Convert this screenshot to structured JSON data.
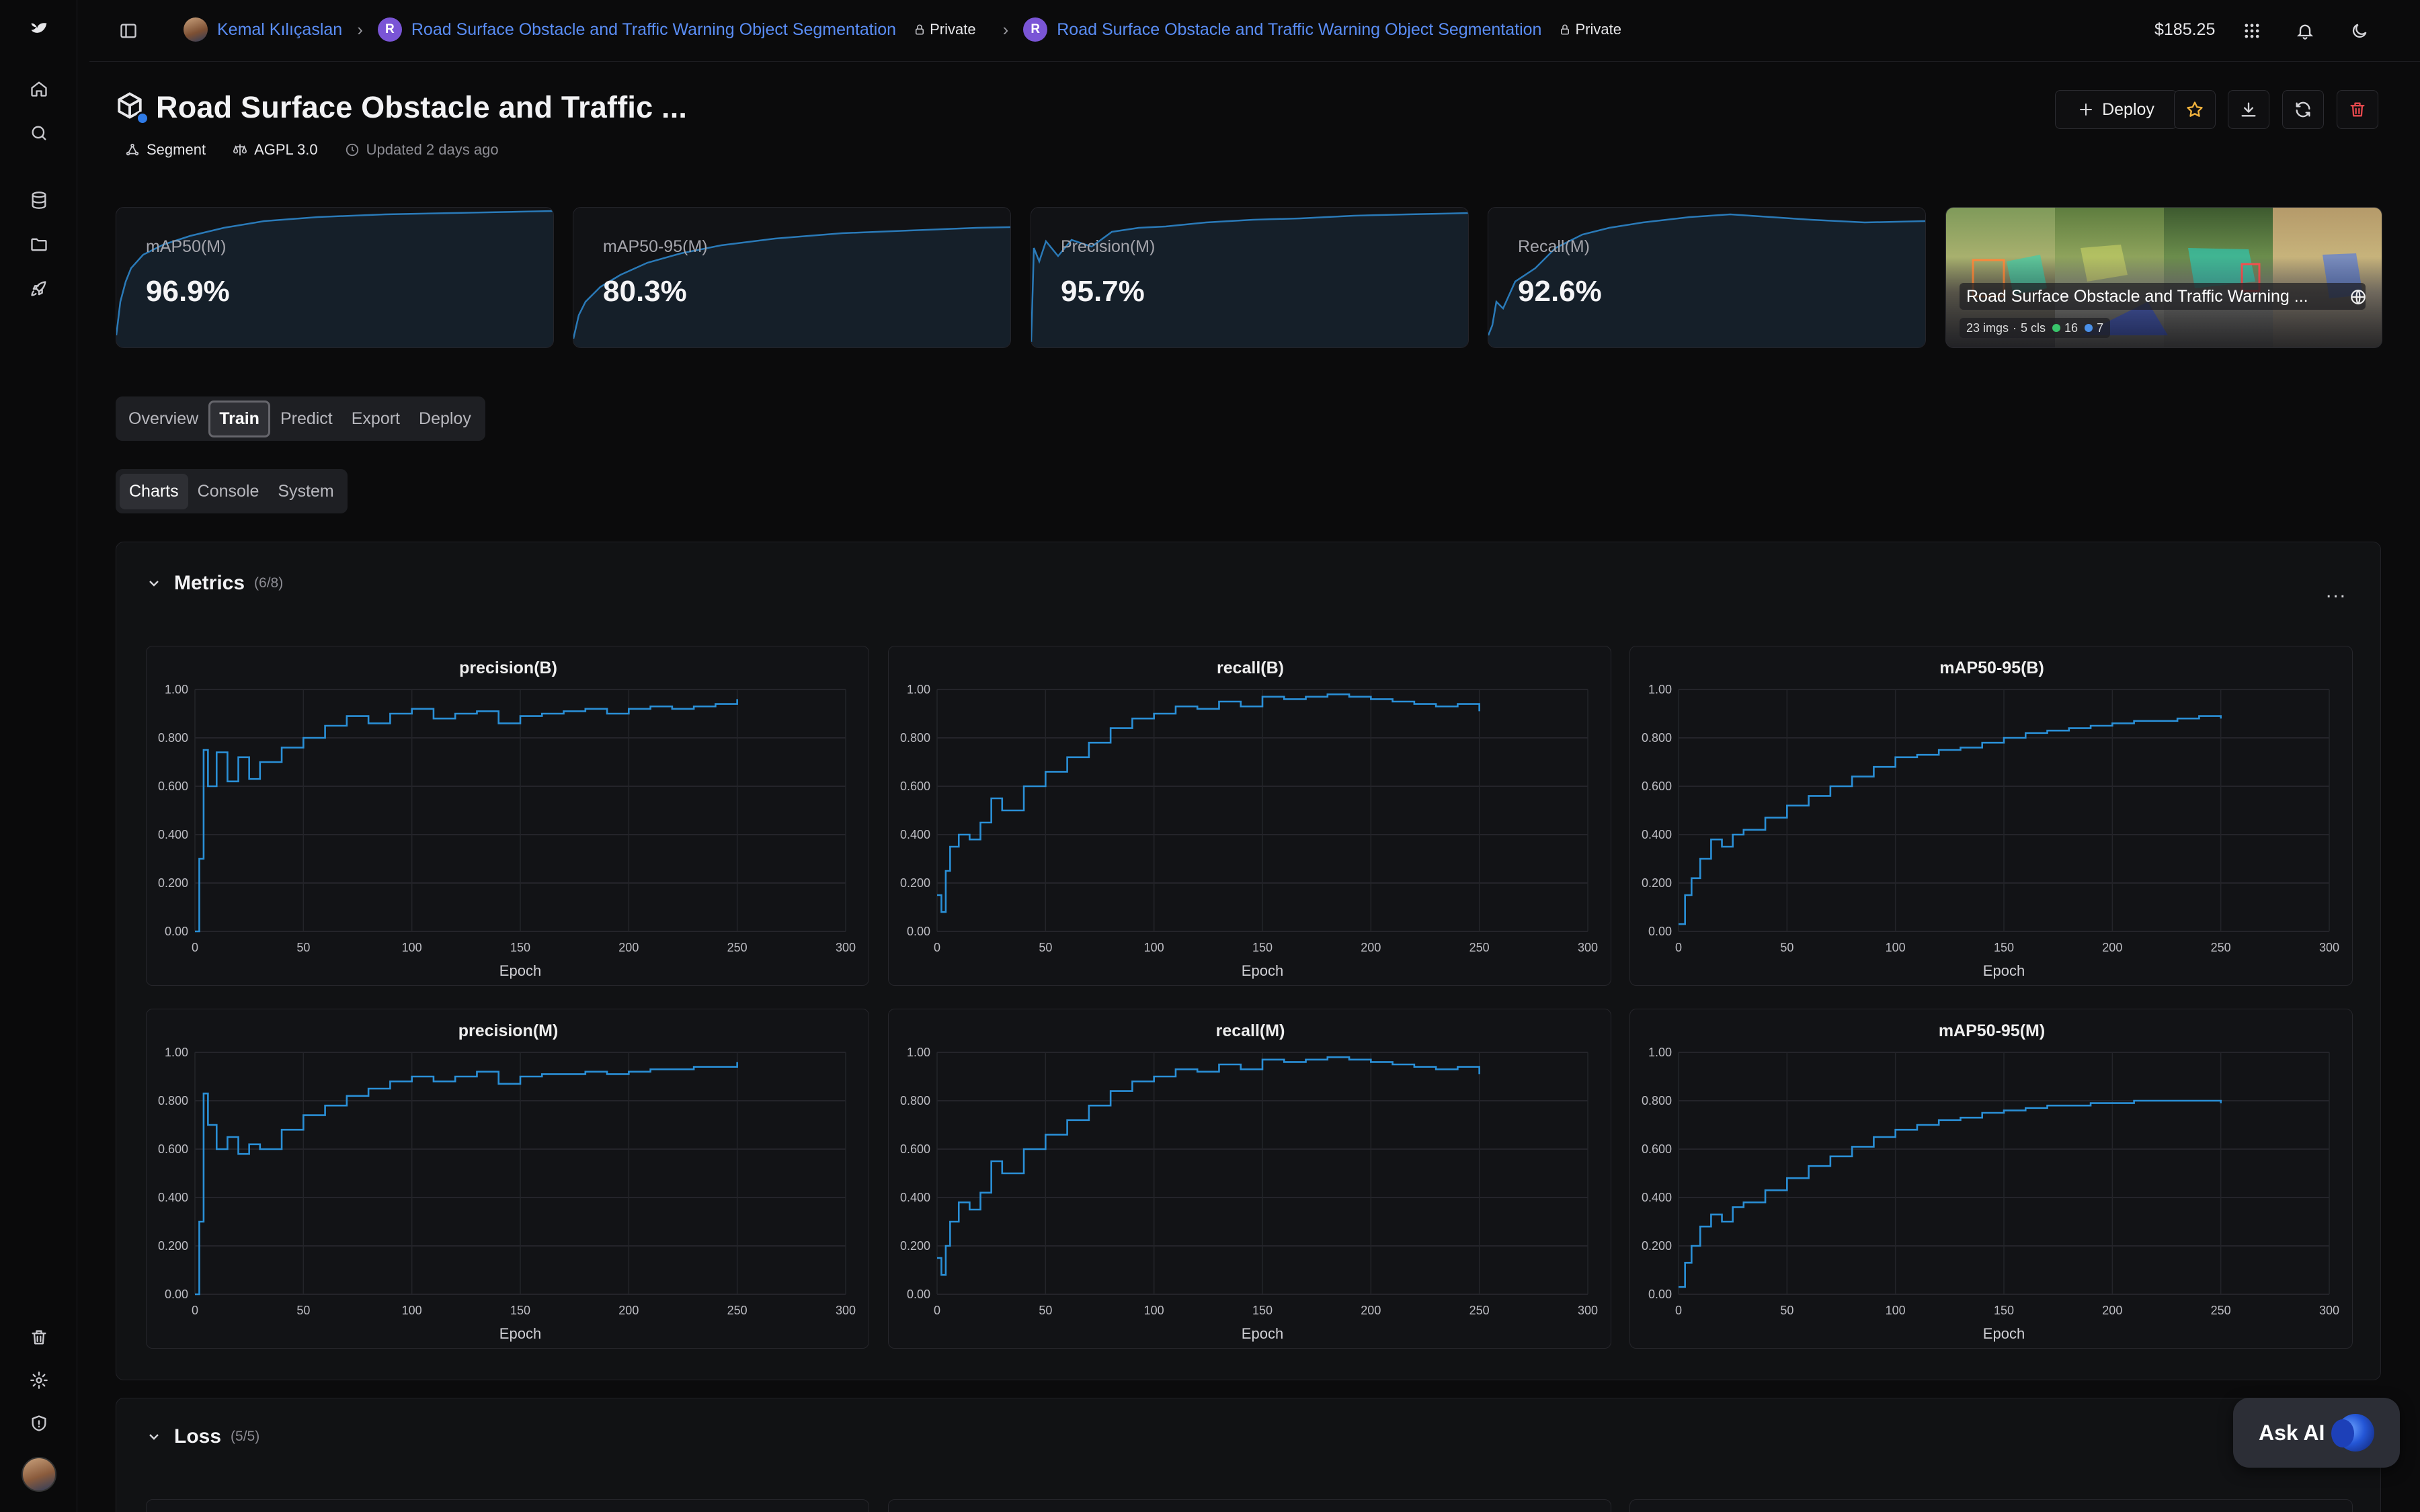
{
  "topbar": {
    "user": "Kemal Kılıçaslan",
    "project": "Road Surface Obstacle and Traffic Warning Object Segmentation",
    "project_initial": "R",
    "project_visibility": "Private",
    "model": "Road Surface Obstacle and Traffic Warning Object Segmentation",
    "model_initial": "R",
    "model_visibility": "Private",
    "balance": "$185.25",
    "icons": [
      "sidebar-toggle-icon",
      "apps-grid-icon",
      "bell-icon",
      "moon-icon"
    ]
  },
  "rail": {
    "icons": [
      "logo-icon",
      "home-icon",
      "search-icon",
      "database-icon",
      "folder-icon",
      "rocket-icon",
      "trash-icon",
      "settings-icon",
      "shield-icon"
    ]
  },
  "header": {
    "title": "Road Surface Obstacle and Traffic ...",
    "task": "Segment",
    "license": "AGPL 3.0",
    "updated": "Updated 2 days ago",
    "deploy_label": "Deploy",
    "star_color": "#f2b33d",
    "delete_color": "#e5484d"
  },
  "metrics_cards": [
    {
      "label": "mAP50(M)",
      "value": "96.9%"
    },
    {
      "label": "mAP50-95(M)",
      "value": "80.3%"
    },
    {
      "label": "Precision(M)",
      "value": "95.7%"
    },
    {
      "label": "Recall(M)",
      "value": "92.6%"
    }
  ],
  "dataset": {
    "name": "Road Surface Obstacle and Traffic Warning ...",
    "images": "23 imgs",
    "classes": "5 cls",
    "count_green": "16",
    "count_blue": "7"
  },
  "tabs": [
    "Overview",
    "Train",
    "Predict",
    "Export",
    "Deploy"
  ],
  "active_tab": "Train",
  "subtabs": [
    "Charts",
    "Console",
    "System"
  ],
  "active_subtab": "Charts",
  "sections": {
    "metrics": {
      "title": "Metrics",
      "count": "(6/8)",
      "more": "..."
    },
    "loss": {
      "title": "Loss",
      "count": "(5/5)"
    }
  },
  "ask_ai": "Ask AI",
  "chart_data": [
    {
      "type": "line",
      "title": "precision(B)",
      "xlabel": "Epoch",
      "xlim": [
        0,
        300
      ],
      "ylim": [
        0,
        1
      ],
      "x_ticks": [
        "0",
        "50",
        "100",
        "150",
        "200",
        "250",
        "300"
      ],
      "y_ticks": [
        "0.00",
        "0.200",
        "0.400",
        "0.600",
        "0.800",
        "1.00"
      ],
      "series": [
        {
          "color": "#2a8fd6",
          "x": [
            0,
            2,
            4,
            6,
            10,
            15,
            20,
            25,
            30,
            40,
            50,
            60,
            70,
            80,
            90,
            100,
            110,
            120,
            130,
            140,
            150,
            160,
            170,
            180,
            190,
            200,
            210,
            220,
            230,
            240,
            250
          ],
          "y": [
            0.0,
            0.3,
            0.75,
            0.6,
            0.74,
            0.62,
            0.72,
            0.63,
            0.7,
            0.76,
            0.8,
            0.85,
            0.89,
            0.86,
            0.9,
            0.92,
            0.88,
            0.9,
            0.91,
            0.86,
            0.89,
            0.9,
            0.91,
            0.92,
            0.9,
            0.92,
            0.93,
            0.92,
            0.93,
            0.94,
            0.96
          ]
        }
      ]
    },
    {
      "type": "line",
      "title": "recall(B)",
      "xlabel": "Epoch",
      "xlim": [
        0,
        300
      ],
      "ylim": [
        0,
        1
      ],
      "x_ticks": [
        "0",
        "50",
        "100",
        "150",
        "200",
        "250",
        "300"
      ],
      "y_ticks": [
        "0.00",
        "0.200",
        "0.400",
        "0.600",
        "0.800",
        "1.00"
      ],
      "series": [
        {
          "color": "#2a8fd6",
          "x": [
            0,
            2,
            4,
            6,
            10,
            15,
            20,
            25,
            30,
            40,
            50,
            60,
            70,
            80,
            90,
            100,
            110,
            120,
            130,
            140,
            150,
            160,
            170,
            180,
            190,
            200,
            210,
            220,
            230,
            240,
            250
          ],
          "y": [
            0.15,
            0.08,
            0.25,
            0.35,
            0.4,
            0.38,
            0.45,
            0.55,
            0.5,
            0.6,
            0.66,
            0.72,
            0.78,
            0.84,
            0.88,
            0.9,
            0.93,
            0.92,
            0.95,
            0.93,
            0.97,
            0.96,
            0.97,
            0.98,
            0.97,
            0.96,
            0.95,
            0.94,
            0.93,
            0.94,
            0.91
          ]
        }
      ]
    },
    {
      "type": "line",
      "title": "mAP50-95(B)",
      "xlabel": "Epoch",
      "xlim": [
        0,
        300
      ],
      "ylim": [
        0,
        1
      ],
      "x_ticks": [
        "0",
        "50",
        "100",
        "150",
        "200",
        "250",
        "300"
      ],
      "y_ticks": [
        "0.00",
        "0.200",
        "0.400",
        "0.600",
        "0.800",
        "1.00"
      ],
      "series": [
        {
          "color": "#2a8fd6",
          "x": [
            0,
            3,
            6,
            10,
            15,
            20,
            25,
            30,
            40,
            50,
            60,
            70,
            80,
            90,
            100,
            110,
            120,
            130,
            140,
            150,
            160,
            170,
            180,
            190,
            200,
            210,
            220,
            230,
            240,
            250
          ],
          "y": [
            0.03,
            0.15,
            0.22,
            0.3,
            0.38,
            0.35,
            0.4,
            0.42,
            0.47,
            0.52,
            0.56,
            0.6,
            0.64,
            0.68,
            0.72,
            0.73,
            0.75,
            0.76,
            0.78,
            0.8,
            0.82,
            0.83,
            0.84,
            0.85,
            0.86,
            0.87,
            0.87,
            0.88,
            0.89,
            0.88
          ]
        }
      ]
    },
    {
      "type": "line",
      "title": "precision(M)",
      "xlabel": "Epoch",
      "xlim": [
        0,
        300
      ],
      "ylim": [
        0,
        1
      ],
      "x_ticks": [
        "0",
        "50",
        "100",
        "150",
        "200",
        "250",
        "300"
      ],
      "y_ticks": [
        "0.00",
        "0.200",
        "0.400",
        "0.600",
        "0.800",
        "1.00"
      ],
      "series": [
        {
          "color": "#2a8fd6",
          "x": [
            0,
            2,
            4,
            6,
            10,
            15,
            20,
            25,
            30,
            40,
            50,
            60,
            70,
            80,
            90,
            100,
            110,
            120,
            130,
            140,
            150,
            160,
            170,
            180,
            190,
            200,
            210,
            220,
            230,
            240,
            250
          ],
          "y": [
            0.0,
            0.3,
            0.83,
            0.7,
            0.6,
            0.65,
            0.58,
            0.62,
            0.6,
            0.68,
            0.74,
            0.78,
            0.82,
            0.85,
            0.88,
            0.9,
            0.88,
            0.9,
            0.92,
            0.87,
            0.9,
            0.91,
            0.91,
            0.92,
            0.91,
            0.92,
            0.93,
            0.93,
            0.94,
            0.94,
            0.96
          ]
        }
      ]
    },
    {
      "type": "line",
      "title": "recall(M)",
      "xlabel": "Epoch",
      "xlim": [
        0,
        300
      ],
      "ylim": [
        0,
        1
      ],
      "x_ticks": [
        "0",
        "50",
        "100",
        "150",
        "200",
        "250",
        "300"
      ],
      "y_ticks": [
        "0.00",
        "0.200",
        "0.400",
        "0.600",
        "0.800",
        "1.00"
      ],
      "series": [
        {
          "color": "#2a8fd6",
          "x": [
            0,
            2,
            4,
            6,
            10,
            15,
            20,
            25,
            30,
            40,
            50,
            60,
            70,
            80,
            90,
            100,
            110,
            120,
            130,
            140,
            150,
            160,
            170,
            180,
            190,
            200,
            210,
            220,
            230,
            240,
            250
          ],
          "y": [
            0.15,
            0.08,
            0.2,
            0.3,
            0.38,
            0.35,
            0.42,
            0.55,
            0.5,
            0.6,
            0.66,
            0.72,
            0.78,
            0.84,
            0.88,
            0.9,
            0.93,
            0.92,
            0.95,
            0.93,
            0.97,
            0.96,
            0.97,
            0.98,
            0.97,
            0.96,
            0.95,
            0.94,
            0.93,
            0.94,
            0.91
          ]
        }
      ]
    },
    {
      "type": "line",
      "title": "mAP50-95(M)",
      "xlabel": "Epoch",
      "xlim": [
        0,
        300
      ],
      "ylim": [
        0,
        1
      ],
      "x_ticks": [
        "0",
        "50",
        "100",
        "150",
        "200",
        "250",
        "300"
      ],
      "y_ticks": [
        "0.00",
        "0.200",
        "0.400",
        "0.600",
        "0.800",
        "1.00"
      ],
      "series": [
        {
          "color": "#2a8fd6",
          "x": [
            0,
            3,
            6,
            10,
            15,
            20,
            25,
            30,
            40,
            50,
            60,
            70,
            80,
            90,
            100,
            110,
            120,
            130,
            140,
            150,
            160,
            170,
            180,
            190,
            200,
            210,
            220,
            230,
            240,
            250
          ],
          "y": [
            0.03,
            0.13,
            0.2,
            0.28,
            0.33,
            0.3,
            0.36,
            0.38,
            0.43,
            0.48,
            0.53,
            0.57,
            0.61,
            0.65,
            0.68,
            0.7,
            0.72,
            0.73,
            0.75,
            0.76,
            0.77,
            0.78,
            0.78,
            0.79,
            0.79,
            0.8,
            0.8,
            0.8,
            0.8,
            0.79
          ]
        }
      ]
    }
  ]
}
